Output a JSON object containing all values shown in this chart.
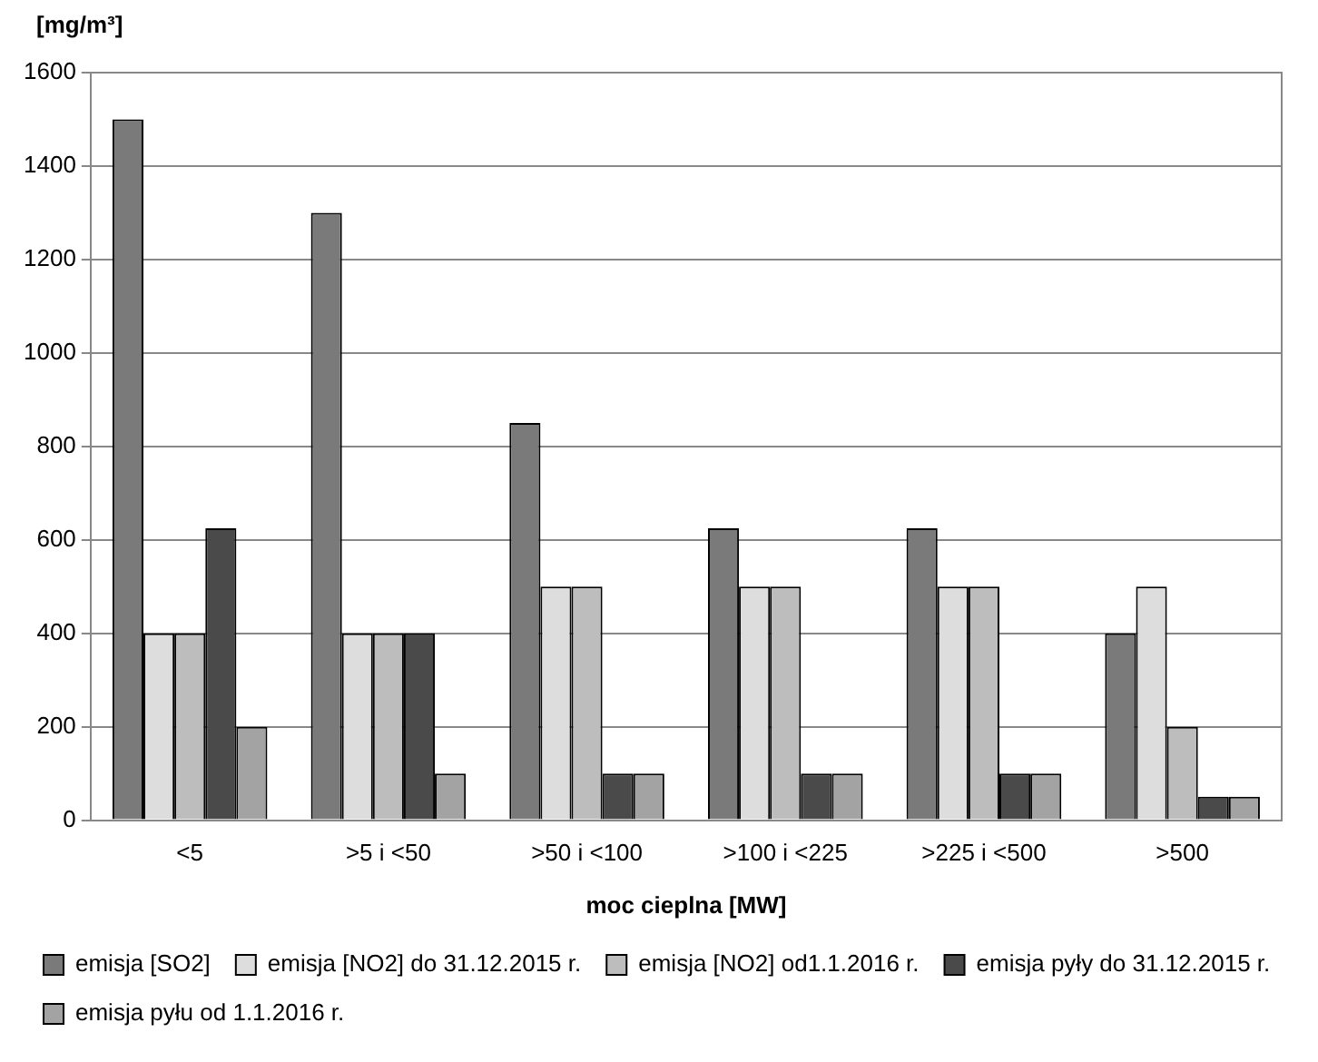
{
  "chart_data": {
    "type": "bar",
    "xlabel": "moc cieplna [MW]",
    "ylabel": "[mg/m³]",
    "categories": [
      "<5",
      ">5 i <50",
      ">50 i <100",
      ">100 i <225",
      ">225 i <500",
      ">500"
    ],
    "series": [
      {
        "name": "emisja [SO2]",
        "color": "#7a7a7a",
        "values": [
          1500,
          1300,
          850,
          625,
          625,
          400
        ]
      },
      {
        "name": "emisja [NO2] do 31.12.2015 r.",
        "color": "#dddddd",
        "values": [
          400,
          400,
          500,
          500,
          500,
          500
        ]
      },
      {
        "name": "emisja [NO2] od1.1.2016 r.",
        "color": "#bdbdbd",
        "values": [
          400,
          400,
          500,
          500,
          500,
          200
        ]
      },
      {
        "name": "emisja pyły do 31.12.2015 r.",
        "color": "#4a4a4a",
        "values": [
          625,
          400,
          100,
          100,
          100,
          50
        ]
      },
      {
        "name": "emisja pyłu od 1.1.2016 r.",
        "color": "#a3a3a3",
        "values": [
          200,
          100,
          100,
          100,
          100,
          50
        ]
      }
    ],
    "ylim": [
      0,
      1600
    ],
    "yticks": [
      0,
      200,
      400,
      600,
      800,
      1000,
      1200,
      1400,
      1600
    ],
    "grid": "y",
    "legend": "bottom"
  }
}
